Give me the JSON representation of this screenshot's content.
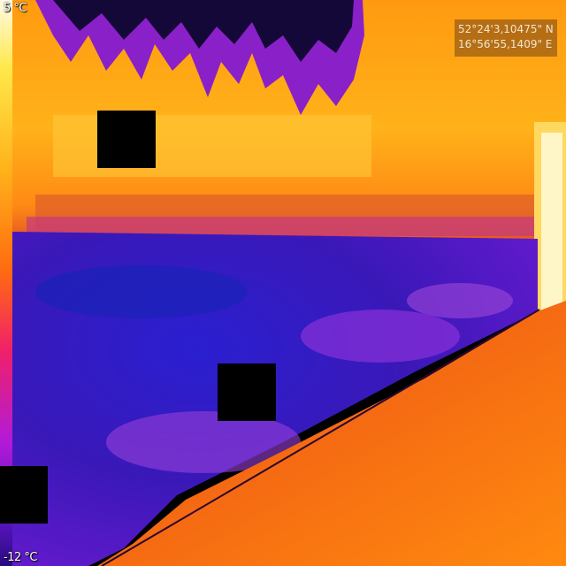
{
  "thermal_view": {
    "temp_max": "5 °C",
    "temp_min": "-12 °C",
    "gps_latitude": "52°24'3,10475\" N",
    "gps_longitude": "16°56'55,1409\" E"
  },
  "colors": {
    "hot": "#ffb21a",
    "warm": "#ff6a10",
    "cool": "#b21ad8",
    "cold": "#2a1aa8"
  }
}
